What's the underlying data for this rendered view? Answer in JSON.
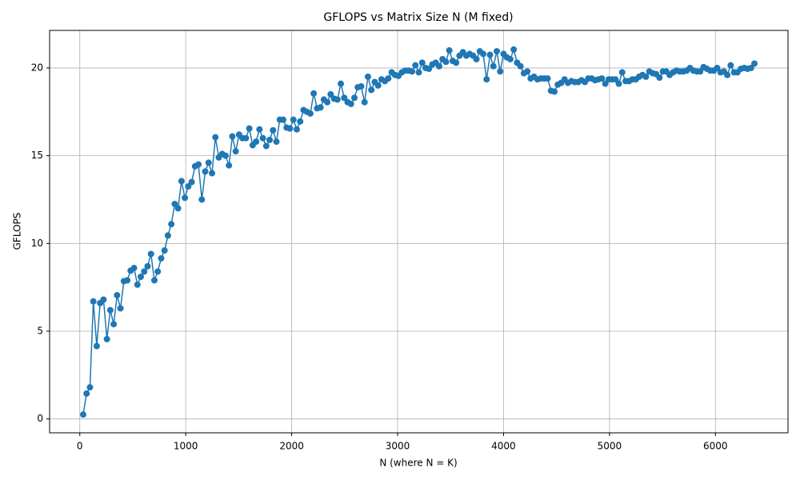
{
  "chart_data": {
    "type": "line",
    "title": "GFLOPS vs Matrix Size N (M fixed)",
    "xlabel": "N (where N = K)",
    "ylabel": "GFLOPS",
    "x": [
      32,
      64,
      96,
      128,
      160,
      192,
      224,
      256,
      288,
      320,
      352,
      384,
      416,
      448,
      480,
      512,
      544,
      576,
      608,
      640,
      672,
      704,
      736,
      768,
      800,
      832,
      864,
      896,
      928,
      960,
      992,
      1024,
      1056,
      1088,
      1120,
      1152,
      1184,
      1216,
      1248,
      1280,
      1312,
      1344,
      1376,
      1408,
      1440,
      1472,
      1504,
      1536,
      1568,
      1600,
      1632,
      1664,
      1696,
      1728,
      1760,
      1792,
      1824,
      1856,
      1888,
      1920,
      1952,
      1984,
      2016,
      2048,
      2080,
      2112,
      2144,
      2176,
      2208,
      2240,
      2272,
      2304,
      2336,
      2368,
      2400,
      2432,
      2464,
      2496,
      2528,
      2560,
      2592,
      2624,
      2656,
      2688,
      2720,
      2752,
      2784,
      2816,
      2848,
      2880,
      2912,
      2944,
      2976,
      3008,
      3040,
      3072,
      3104,
      3136,
      3168,
      3200,
      3232,
      3264,
      3296,
      3328,
      3360,
      3392,
      3424,
      3456,
      3488,
      3520,
      3552,
      3584,
      3616,
      3648,
      3680,
      3712,
      3744,
      3776,
      3808,
      3840,
      3872,
      3904,
      3936,
      3968,
      4000,
      4032,
      4064,
      4096,
      4128,
      4160,
      4192,
      4224,
      4256,
      4288,
      4320,
      4352,
      4384,
      4416,
      4448,
      4480,
      4512,
      4544,
      4576,
      4608,
      4640,
      4672,
      4704,
      4736,
      4768,
      4800,
      4832,
      4864,
      4896,
      4928,
      4960,
      4992,
      5024,
      5056,
      5088,
      5120,
      5152,
      5184,
      5216,
      5248,
      5280,
      5312,
      5344,
      5376,
      5408,
      5440,
      5472,
      5504,
      5536,
      5568,
      5600,
      5632,
      5664,
      5696,
      5728,
      5760,
      5792,
      5824,
      5856,
      5888,
      5920,
      5952,
      5984,
      6016,
      6048,
      6080,
      6112,
      6144,
      6176,
      6208,
      6240,
      6272,
      6304,
      6336,
      6368
    ],
    "series": [
      {
        "name": "GFLOPS",
        "color": "#1f77b4",
        "values": [
          0.25,
          1.45,
          1.8,
          6.7,
          4.15,
          6.6,
          6.8,
          4.55,
          6.2,
          5.4,
          7.05,
          6.3,
          7.85,
          7.9,
          8.45,
          8.6,
          7.65,
          8.1,
          8.4,
          8.7,
          9.4,
          7.9,
          8.4,
          9.15,
          9.6,
          10.45,
          11.1,
          12.25,
          12.0,
          13.55,
          12.6,
          13.25,
          13.5,
          14.4,
          14.5,
          12.5,
          14.1,
          14.6,
          14.0,
          16.05,
          14.9,
          15.1,
          15.0,
          14.45,
          16.1,
          15.25,
          16.2,
          16.0,
          16.0,
          16.55,
          15.6,
          15.8,
          16.5,
          16.0,
          15.55,
          15.9,
          16.45,
          15.8,
          17.05,
          17.05,
          16.6,
          16.55,
          17.05,
          16.5,
          16.95,
          17.6,
          17.5,
          17.4,
          18.55,
          17.7,
          17.75,
          18.2,
          18.05,
          18.5,
          18.25,
          18.2,
          19.1,
          18.3,
          18.05,
          17.95,
          18.3,
          18.9,
          18.95,
          18.05,
          19.5,
          18.75,
          19.2,
          19.0,
          19.35,
          19.25,
          19.4,
          19.75,
          19.6,
          19.55,
          19.75,
          19.85,
          19.85,
          19.8,
          20.15,
          19.75,
          20.3,
          20.0,
          19.95,
          20.2,
          20.3,
          20.1,
          20.5,
          20.35,
          21.0,
          20.4,
          20.3,
          20.7,
          20.9,
          20.7,
          20.8,
          20.7,
          20.5,
          20.95,
          20.8,
          19.35,
          20.75,
          20.1,
          20.95,
          19.8,
          20.8,
          20.6,
          20.5,
          21.05,
          20.3,
          20.1,
          19.7,
          19.8,
          19.4,
          19.5,
          19.35,
          19.4,
          19.4,
          19.4,
          18.7,
          18.65,
          19.05,
          19.15,
          19.35,
          19.15,
          19.25,
          19.2,
          19.2,
          19.3,
          19.2,
          19.4,
          19.4,
          19.3,
          19.35,
          19.4,
          19.1,
          19.35,
          19.35,
          19.35,
          19.1,
          19.75,
          19.25,
          19.25,
          19.35,
          19.35,
          19.5,
          19.6,
          19.5,
          19.8,
          19.7,
          19.65,
          19.45,
          19.8,
          19.8,
          19.6,
          19.75,
          19.85,
          19.8,
          19.8,
          19.85,
          20.0,
          19.85,
          19.8,
          19.8,
          20.05,
          19.95,
          19.85,
          19.85,
          20.0,
          19.75,
          19.8,
          19.6,
          20.15,
          19.75,
          19.75,
          19.95,
          20.0,
          19.95,
          20.0,
          20.25
        ]
      }
    ],
    "xlim": [
      -285,
      6685
    ],
    "ylim": [
      -0.79,
      22.14
    ],
    "xticks": [
      0,
      1000,
      2000,
      3000,
      4000,
      5000,
      6000
    ],
    "yticks": [
      0,
      5,
      10,
      15,
      20
    ],
    "grid": true
  }
}
